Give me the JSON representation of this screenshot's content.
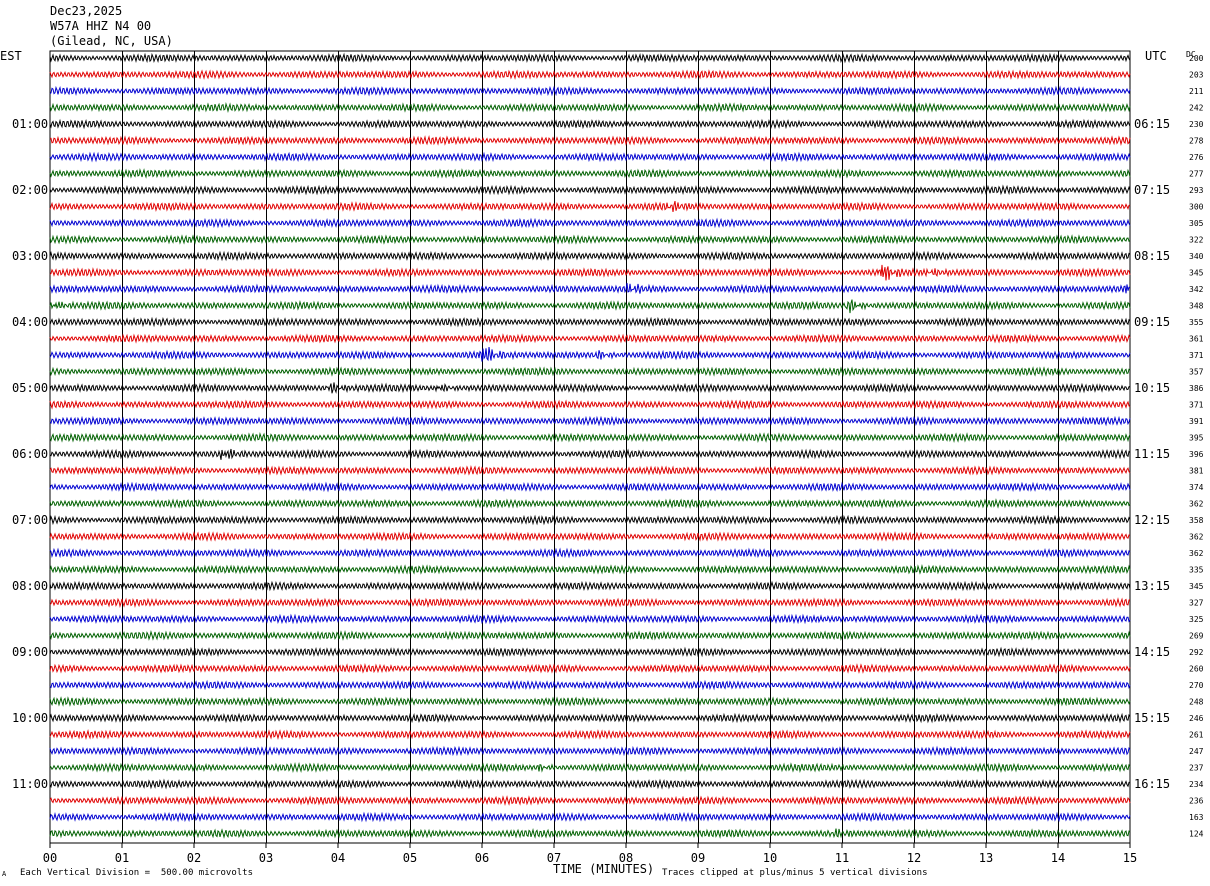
{
  "header": {
    "date": "Dec23,2025",
    "station": "W57A HHZ N4 00",
    "location": "(Gilead, NC, USA)"
  },
  "labels": {
    "left_timezone": "EST",
    "right_timezone": "UTC",
    "dc_label": "DC",
    "x_axis_title": "TIME (MINUTES)",
    "scale_note": "Each Vertical Division =  500.00 microvolts",
    "clip_note": "Traces clipped at plus/minus 5 vertical divisions",
    "corner_mark": "A"
  },
  "colors": {
    "trace_cycle": [
      "#000000",
      "#e00000",
      "#0000d0",
      "#006000"
    ],
    "grid": "#000000",
    "background": "#ffffff"
  },
  "chart_data": {
    "type": "line",
    "title": "W57A HHZ N4 00",
    "xlabel": "TIME (MINUTES)",
    "xlim": [
      0,
      15
    ],
    "x_ticks": [
      "00",
      "01",
      "02",
      "03",
      "04",
      "05",
      "06",
      "07",
      "08",
      "09",
      "10",
      "11",
      "12",
      "13",
      "14",
      "15"
    ],
    "rows_per_hour": 4,
    "row_count": 48,
    "left_hour_labels": [
      "01:00",
      "02:00",
      "03:00",
      "04:00",
      "05:00",
      "06:00",
      "07:00",
      "08:00",
      "09:00",
      "10:00",
      "11:00"
    ],
    "right_hour_labels": [
      "06:15",
      "07:15",
      "08:15",
      "09:15",
      "10:15",
      "11:15",
      "12:15",
      "13:15",
      "14:15",
      "15:15",
      "16:15"
    ],
    "dc_offsets": [
      200,
      203,
      211,
      242,
      230,
      278,
      276,
      277,
      293,
      300,
      305,
      322,
      340,
      345,
      342,
      348,
      355,
      361,
      371,
      357,
      386,
      371,
      391,
      395,
      396,
      381,
      374,
      362,
      358,
      362,
      362,
      335,
      345,
      327,
      325,
      269,
      292,
      260,
      270,
      248,
      246,
      261,
      247,
      237,
      234,
      236,
      163,
      124
    ],
    "events": [
      {
        "row": 9,
        "minute": 8.6,
        "amplitude": 2.2
      },
      {
        "row": 13,
        "minute": 11.55,
        "amplitude": 5.0
      },
      {
        "row": 13,
        "minute": 12.2,
        "amplitude": 1.5
      },
      {
        "row": 14,
        "minute": 8.05,
        "amplitude": 2.2
      },
      {
        "row": 14,
        "minute": 14.95,
        "amplitude": 3.5
      },
      {
        "row": 15,
        "minute": 0.05,
        "amplitude": 2.0
      },
      {
        "row": 15,
        "minute": 11.1,
        "amplitude": 3.0
      },
      {
        "row": 18,
        "minute": 6.0,
        "amplitude": 5.0
      },
      {
        "row": 18,
        "minute": 7.6,
        "amplitude": 1.8
      },
      {
        "row": 20,
        "minute": 3.9,
        "amplitude": 2.2
      },
      {
        "row": 20,
        "minute": 5.4,
        "amplitude": 1.8
      },
      {
        "row": 24,
        "minute": 2.4,
        "amplitude": 3.0
      },
      {
        "row": 43,
        "minute": 6.8,
        "amplitude": 1.4
      },
      {
        "row": 47,
        "minute": 10.9,
        "amplitude": 1.5
      }
    ]
  }
}
